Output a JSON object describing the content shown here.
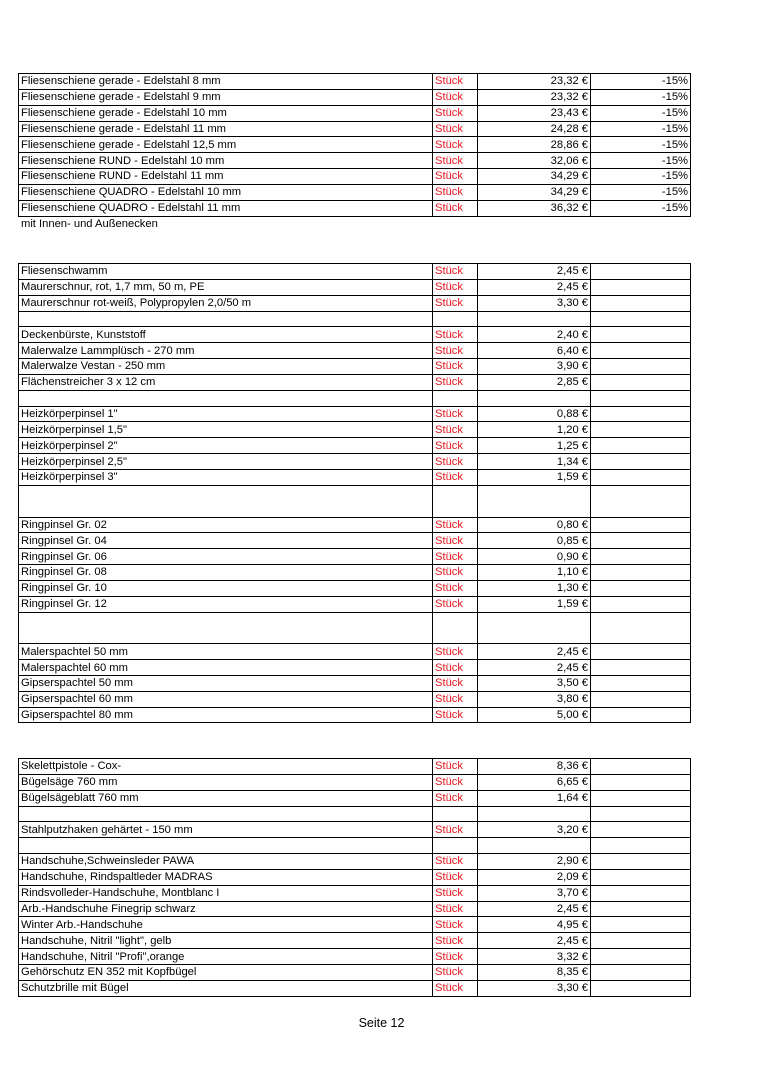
{
  "tables": [
    {
      "rows": [
        {
          "name": "Fliesenschiene gerade - Edelstahl  8 mm",
          "unit": "Stück",
          "price": "23,32 €",
          "discount": "-15%"
        },
        {
          "name": "Fliesenschiene gerade - Edelstahl  9 mm",
          "unit": "Stück",
          "price": "23,32 €",
          "discount": "-15%"
        },
        {
          "name": "Fliesenschiene gerade - Edelstahl  10 mm",
          "unit": "Stück",
          "price": "23,43 €",
          "discount": "-15%"
        },
        {
          "name": "Fliesenschiene gerade - Edelstahl  11 mm",
          "unit": "Stück",
          "price": "24,28 €",
          "discount": "-15%"
        },
        {
          "name": "Fliesenschiene gerade - Edelstahl  12,5 mm",
          "unit": "Stück",
          "price": "28,86 €",
          "discount": "-15%"
        },
        {
          "name": "Fliesenschiene RUND - Edelstahl  10 mm",
          "unit": "Stück",
          "price": "32,06 €",
          "discount": "-15%"
        },
        {
          "name": "Fliesenschiene RUND - Edelstahl  11 mm",
          "unit": "Stück",
          "price": "34,29 €",
          "discount": "-15%"
        },
        {
          "name": "Fliesenschiene QUADRO - Edelstahl  10 mm",
          "unit": "Stück",
          "price": "34,29 €",
          "discount": "-15%"
        },
        {
          "name": "Fliesenschiene QUADRO - Edelstahl  11 mm",
          "unit": "Stück",
          "price": "36,32 €",
          "discount": "-15%"
        }
      ]
    },
    {
      "rows": [
        {
          "name": "Fliesenschwamm",
          "unit": "Stück",
          "price": "2,45 €"
        },
        {
          "name": "Maurerschnur, rot, 1,7 mm, 50 m, PE",
          "unit": "Stück",
          "price": "2,45 €"
        },
        {
          "name": "Maurerschnur rot-weiß, Polypropylen 2,0/50 m",
          "unit": "Stück",
          "price": "3,30 €"
        },
        {
          "blank": 1
        },
        {
          "name": "Deckenbürste, Kunststoff",
          "unit": "Stück",
          "price": "2,40 €"
        },
        {
          "name": "Malerwalze Lammplüsch - 270 mm",
          "unit": "Stück",
          "price": "6,40 €"
        },
        {
          "name": "Malerwalze Vestan - 250 mm",
          "unit": "Stück",
          "price": "3,90 €"
        },
        {
          "name": "Flächenstreicher 3 x 12 cm",
          "unit": "Stück",
          "price": "2,85 €"
        },
        {
          "blank": 1
        },
        {
          "name": "Heizkörperpinsel 1\"",
          "unit": "Stück",
          "price": "0,88 €"
        },
        {
          "name": "Heizkörperpinsel 1,5\"",
          "unit": "Stück",
          "price": "1,20 €"
        },
        {
          "name": "Heizkörperpinsel 2\"",
          "unit": "Stück",
          "price": "1,25 €"
        },
        {
          "name": "Heizkörperpinsel 2,5\"",
          "unit": "Stück",
          "price": "1,34 €"
        },
        {
          "name": "Heizkörperpinsel 3\"",
          "unit": "Stück",
          "price": "1,59 €"
        },
        {
          "blank": 2
        },
        {
          "name": "Ringpinsel Gr. 02",
          "unit": "Stück",
          "price": "0,80 €"
        },
        {
          "name": "Ringpinsel Gr. 04",
          "unit": "Stück",
          "price": "0,85 €"
        },
        {
          "name": "Ringpinsel Gr. 06",
          "unit": "Stück",
          "price": "0,90 €"
        },
        {
          "name": "Ringpinsel Gr. 08",
          "unit": "Stück",
          "price": "1,10 €"
        },
        {
          "name": "Ringpinsel Gr. 10",
          "unit": "Stück",
          "price": "1,30 €"
        },
        {
          "name": "Ringpinsel Gr. 12",
          "unit": "Stück",
          "price": "1,59 €"
        },
        {
          "blank": 2
        },
        {
          "name": "Malerspachtel 50 mm",
          "unit": "Stück",
          "price": "2,45 €"
        },
        {
          "name": "Malerspachtel 60 mm",
          "unit": "Stück",
          "price": "2,45 €"
        },
        {
          "name": "Gipserspachtel 50 mm",
          "unit": "Stück",
          "price": "3,50 €"
        },
        {
          "name": "Gipserspachtel 60 mm",
          "unit": "Stück",
          "price": "3,80 €"
        },
        {
          "name": "Gipserspachtel 80 mm",
          "unit": "Stück",
          "price": "5,00 €"
        }
      ]
    },
    {
      "rows": [
        {
          "name": "Skelettpistole - Cox-",
          "unit": "Stück",
          "price": "8,36 €"
        },
        {
          "name": "Bügelsäge 760 mm",
          "unit": "Stück",
          "price": "6,65 €"
        },
        {
          "name": "Bügelsägeblatt 760 mm",
          "unit": "Stück",
          "price": "1,64 €"
        },
        {
          "blank": 1
        },
        {
          "name": "Stahlputzhaken gehärtet - 150 mm",
          "unit": "Stück",
          "price": "3,20 €"
        },
        {
          "blank": 1
        },
        {
          "name": "Handschuhe,Schweinsleder PAWA",
          "unit": "Stück",
          "price": "2,90 €"
        },
        {
          "name": "Handschuhe, Rindspaltleder MADRAS",
          "unit": "Stück",
          "price": "2,09 €"
        },
        {
          "name": "Rindsvolleder-Handschuhe, Montblanc I",
          "unit": "Stück",
          "price": "3,70 €"
        },
        {
          "name": "Arb.-Handschuhe Finegrip schwarz",
          "unit": "Stück",
          "price": "2,45 €"
        },
        {
          "name": "Winter Arb.-Handschuhe",
          "unit": "Stück",
          "price": "4,95 €"
        },
        {
          "name": "Handschuhe, Nitril \"light\", gelb",
          "unit": "Stück",
          "price": "2,45 €"
        },
        {
          "name": "Handschuhe, Nitril \"Profi\",orange",
          "unit": "Stück",
          "price": "3,32 €"
        },
        {
          "name": "Gehörschutz EN 352 mit Kopfbügel",
          "unit": "Stück",
          "price": "8,35 €"
        },
        {
          "name": "Schutzbrille mit Bügel",
          "unit": "Stück",
          "price": "3,30 €"
        }
      ]
    }
  ],
  "note": "mit  Innen- und Außenecken",
  "footer": "Seite 12",
  "colors": {
    "unit_text": "#e8141c",
    "border": "#000000"
  }
}
